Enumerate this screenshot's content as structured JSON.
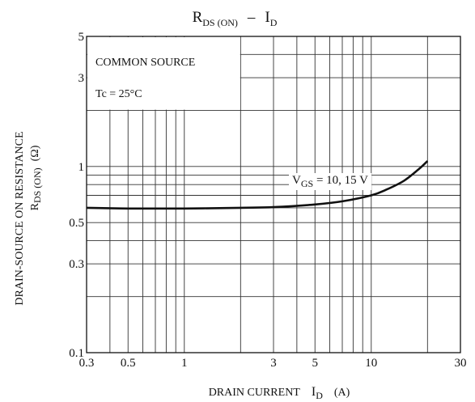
{
  "chart_data": {
    "type": "line",
    "title": {
      "main": "R",
      "sub": "DS (ON)",
      "sep": "–",
      "main2": "I",
      "sub2": "D"
    },
    "xlabel": {
      "text": "DRAIN CURRENT",
      "symbol": "I",
      "symbol_sub": "D",
      "unit": "(A)"
    },
    "ylabel": {
      "line1": "DRAIN-SOURCE ON RESISTANCE",
      "line2_symbol": "R",
      "line2_sub": "DS (ON)",
      "line2_unit": "(Ω)"
    },
    "xscale": "log",
    "yscale": "log",
    "xlim": [
      0.3,
      30
    ],
    "ylim": [
      0.1,
      5
    ],
    "x_ticks": [
      {
        "value": 0.3,
        "label": "0.3"
      },
      {
        "value": 0.5,
        "label": "0.5"
      },
      {
        "value": 1,
        "label": "1"
      },
      {
        "value": 3,
        "label": "3"
      },
      {
        "value": 5,
        "label": "5"
      },
      {
        "value": 10,
        "label": "10"
      },
      {
        "value": 30,
        "label": "30"
      }
    ],
    "y_ticks": [
      {
        "value": 0.1,
        "label": "0.1"
      },
      {
        "value": 0.3,
        "label": "0.3"
      },
      {
        "value": 0.5,
        "label": "0.5"
      },
      {
        "value": 1,
        "label": "1"
      },
      {
        "value": 3,
        "label": "3"
      },
      {
        "value": 5,
        "label": "5"
      }
    ],
    "grid": true,
    "annotations": {
      "box_line1": "COMMON SOURCE",
      "box_line2": "Tc = 25°C"
    },
    "series": [
      {
        "label_main": "V",
        "label_sub": "GS",
        "label_rest": " = 10, 15 V",
        "color": "#111111",
        "x": [
          0.3,
          0.5,
          1,
          2,
          3,
          5,
          7,
          10,
          12,
          15,
          18,
          20
        ],
        "y": [
          0.6,
          0.595,
          0.595,
          0.6,
          0.605,
          0.625,
          0.65,
          0.7,
          0.75,
          0.84,
          0.97,
          1.07
        ]
      }
    ]
  }
}
